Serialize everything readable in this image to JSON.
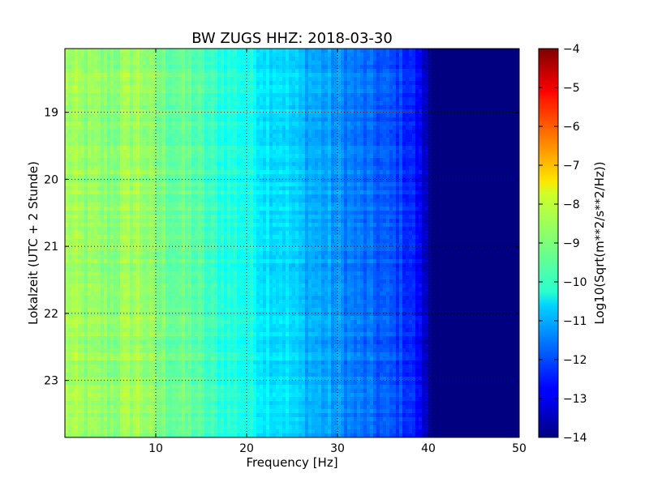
{
  "chart_data": {
    "type": "heatmap",
    "title": "BW ZUGS HHZ: 2018-03-30",
    "xlabel": "Frequency [Hz]",
    "ylabel": "Lokalzeit (UTC + 2 Stunde)",
    "xlim": [
      0,
      50
    ],
    "ylim": [
      18.05,
      23.85
    ],
    "y_inverted": true,
    "x_ticks": [
      "10",
      "20",
      "30",
      "40",
      "50"
    ],
    "x_tick_values": [
      10,
      20,
      30,
      40,
      50
    ],
    "y_ticks": [
      "19",
      "20",
      "21",
      "22",
      "23"
    ],
    "y_tick_values": [
      19,
      20,
      21,
      22,
      23
    ],
    "grid": true,
    "colorbar": {
      "label": "Log10(Sqrt(m**2/s**2/Hz))",
      "min": -14,
      "max": -4,
      "ticks": [
        "−4",
        "−5",
        "−6",
        "−7",
        "−8",
        "−9",
        "−10",
        "−11",
        "−12",
        "−13",
        "−14"
      ],
      "tick_values": [
        -4,
        -5,
        -6,
        -7,
        -8,
        -9,
        -10,
        -11,
        -12,
        -13,
        -14
      ],
      "colormap": "jet"
    },
    "spectrum_profile": {
      "frequency": [
        0,
        2,
        5,
        8,
        10,
        12,
        14,
        16,
        18,
        20,
        22,
        24,
        26,
        28,
        30,
        32,
        34,
        36,
        38,
        39,
        40,
        40.5,
        50
      ],
      "value": [
        -8.6,
        -8.8,
        -8.9,
        -8.6,
        -9.0,
        -9.2,
        -9.3,
        -9.7,
        -9.9,
        -10.0,
        -10.4,
        -10.5,
        -10.9,
        -11.1,
        -11.3,
        -11.6,
        -11.8,
        -12.0,
        -12.3,
        -12.8,
        -13.6,
        -14.0,
        -14.0
      ]
    }
  }
}
